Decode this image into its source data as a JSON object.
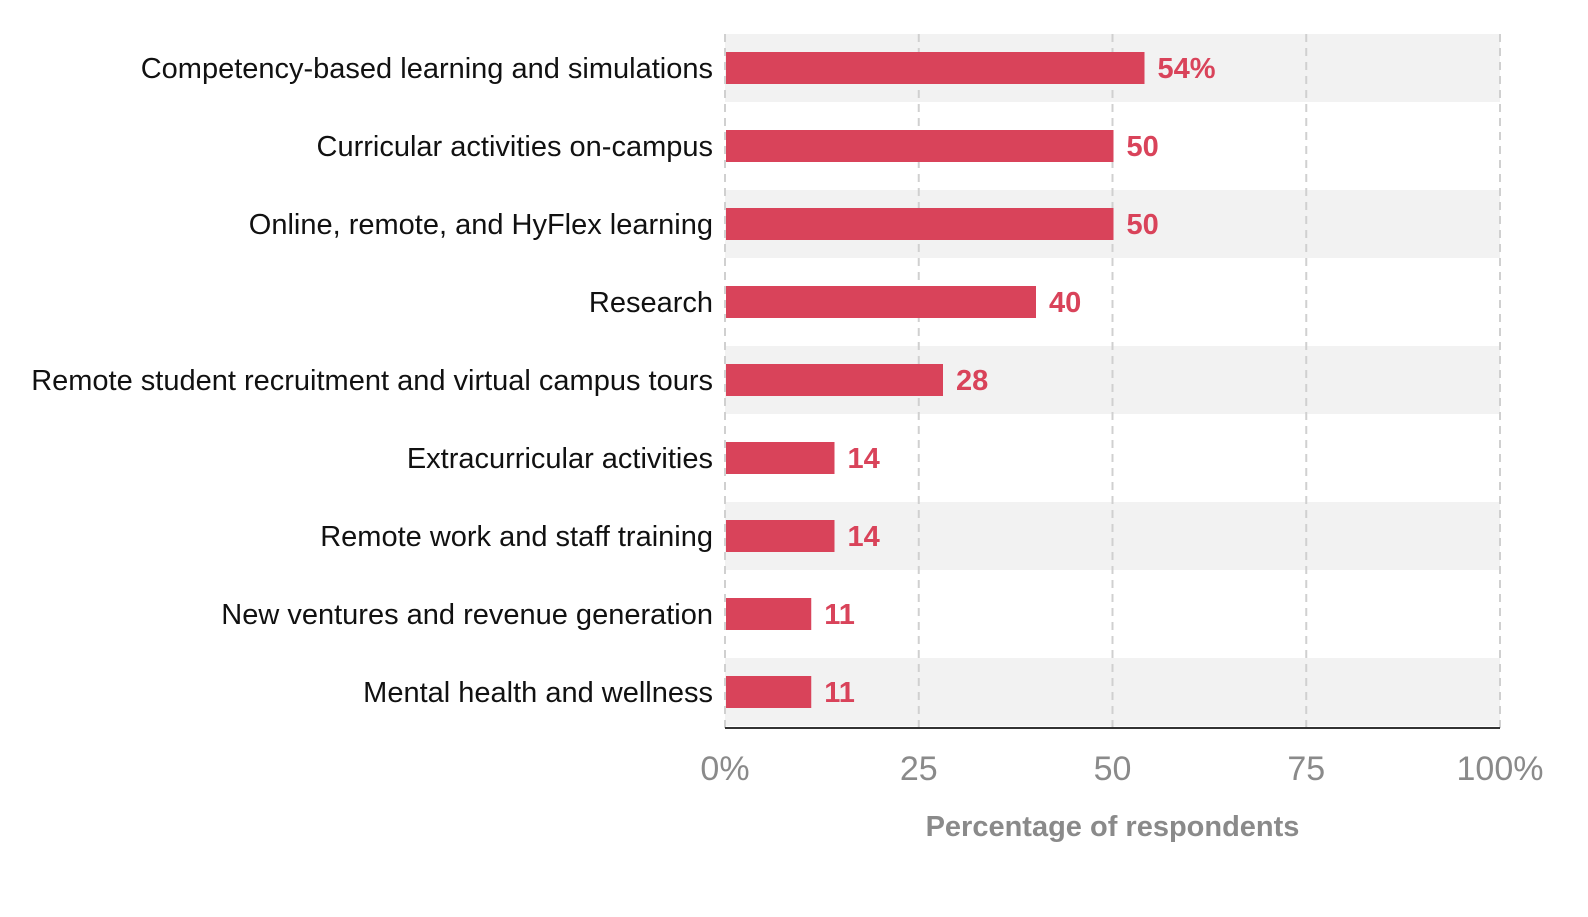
{
  "chart_data": {
    "type": "bar",
    "orientation": "horizontal",
    "categories": [
      "Competency-based learning and simulations",
      "Curricular activities on-campus",
      "Online, remote, and HyFlex learning",
      "Research",
      "Remote student recruitment and virtual campus tours",
      "Extracurricular activities",
      "Remote work and staff training",
      "New ventures and revenue generation",
      "Mental health and wellness"
    ],
    "values": [
      54,
      50,
      50,
      40,
      28,
      14,
      14,
      11,
      11
    ],
    "value_labels": [
      "54%",
      "50",
      "50",
      "40",
      "28",
      "14",
      "14",
      "11",
      "11"
    ],
    "xlim": [
      0,
      100
    ],
    "xticks": [
      0,
      25,
      50,
      75,
      100
    ],
    "xtick_labels": [
      "0%",
      "25",
      "50",
      "75",
      "100%"
    ],
    "xlabel": "Percentage of respondents",
    "ylabel": "",
    "grid": "vertical dashed",
    "colors": {
      "bar": "#d9435a",
      "value_label": "#d9435a",
      "band": "#f2f2f2",
      "grid": "#d0d0d0",
      "axis": "#333333",
      "tick_label": "#8a8a8a",
      "category_label": "#111111"
    }
  }
}
